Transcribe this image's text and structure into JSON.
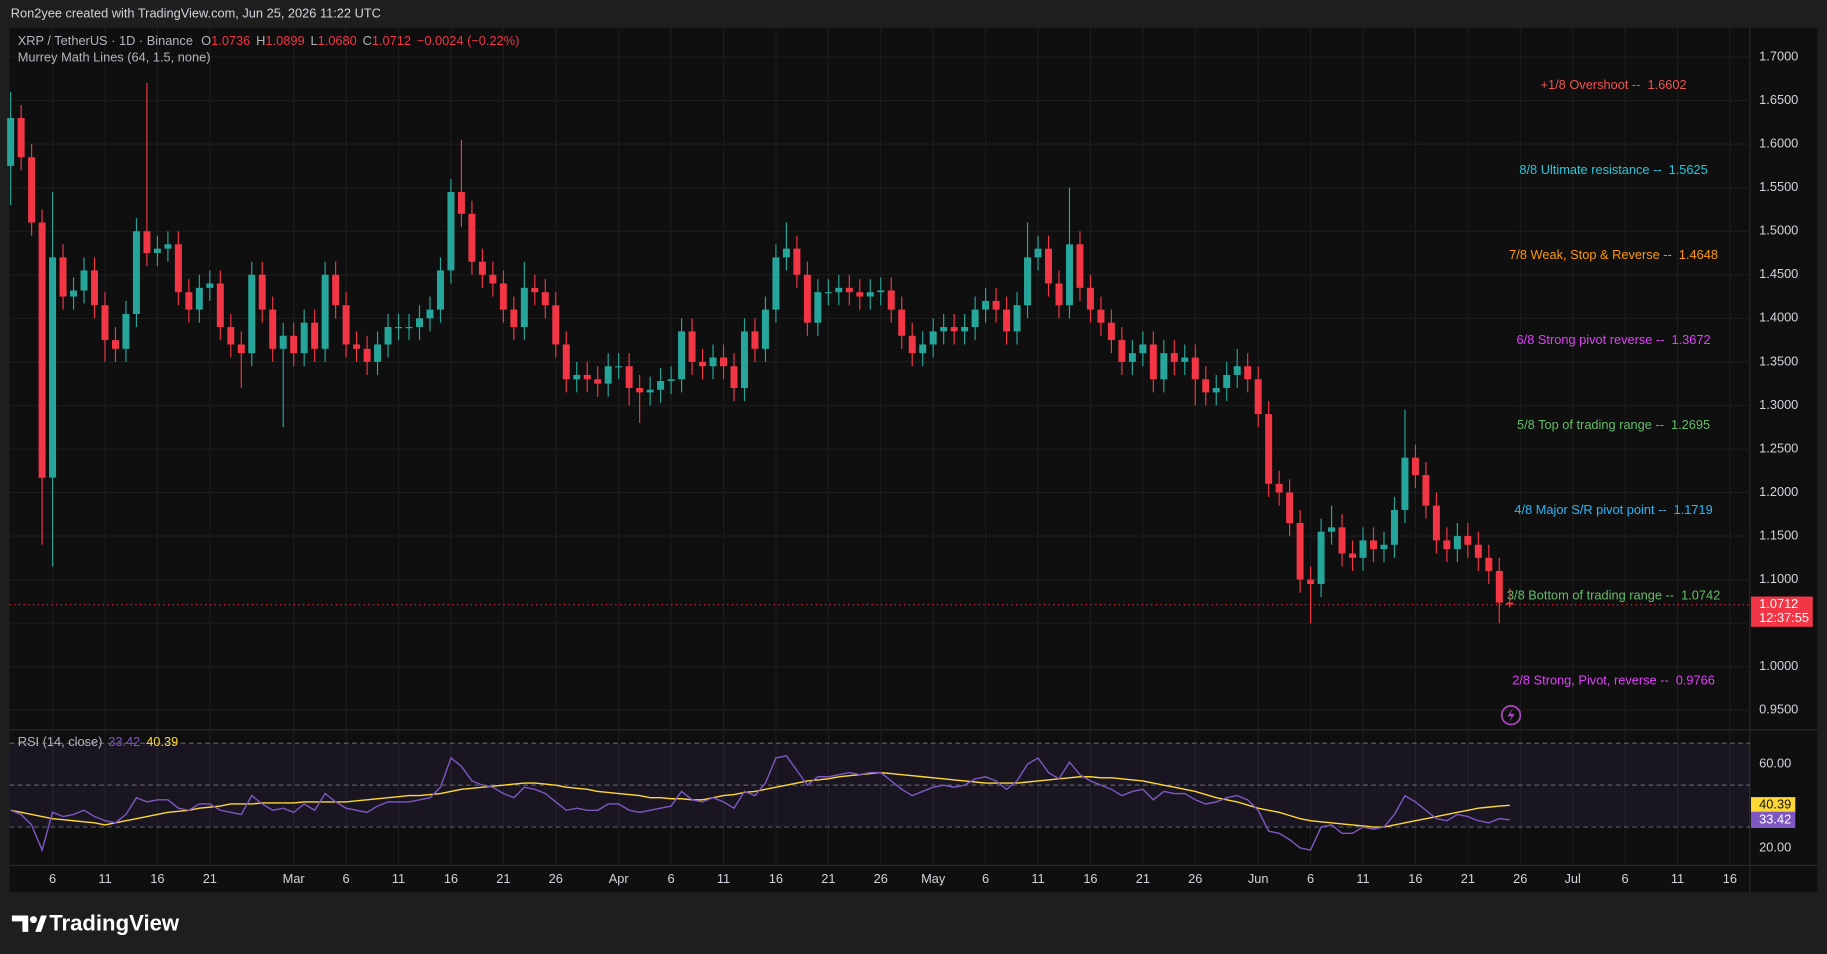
{
  "chart_data": {
    "type": "candlestick",
    "header": "Ron2yee created with TradingView.com, Jun 25, 2026 11:22 UTC",
    "legend": {
      "symbol": "XRP / TetherUS · 1D · Binance",
      "o": "O",
      "h": "H",
      "l": "L",
      "c": "C",
      "values": [
        "1.0736",
        "1.0899",
        "1.0680",
        "1.0712"
      ],
      "change": "−0.0024 (−0.22%)"
    },
    "countdown": "12:37:55",
    "up_color": "#26a69a",
    "down_color": "#f23645",
    "candles": {
      "open": [
        1.575,
        1.63,
        1.585,
        1.51,
        1.217,
        1.47,
        1.425,
        1.432,
        1.455,
        1.415,
        1.375,
        1.365,
        1.405,
        1.5,
        1.475,
        1.48,
        1.485,
        1.43,
        1.41,
        1.435,
        1.44,
        1.39,
        1.37,
        1.36,
        1.45,
        1.41,
        1.365,
        1.38,
        1.36,
        1.395,
        1.365,
        1.45,
        1.415,
        1.37,
        1.365,
        1.35,
        1.37,
        1.39,
        1.39,
        1.39,
        1.4,
        1.41,
        1.455,
        1.545,
        1.52,
        1.465,
        1.45,
        1.44,
        1.41,
        1.39,
        1.435,
        1.43,
        1.415,
        1.37,
        1.33,
        1.335,
        1.33,
        1.325,
        1.345,
        1.345,
        1.32,
        1.315,
        1.318,
        1.328,
        1.33,
        1.385,
        1.35,
        1.345,
        1.355,
        1.345,
        1.32,
        1.385,
        1.365,
        1.41,
        1.47,
        1.48,
        1.45,
        1.395,
        1.43,
        1.43,
        1.435,
        1.43,
        1.425,
        1.43,
        1.432,
        1.41,
        1.38,
        1.36,
        1.37,
        1.385,
        1.39,
        1.385,
        1.39,
        1.41,
        1.42,
        1.41,
        1.385,
        1.415,
        1.47,
        1.48,
        1.44,
        1.415,
        1.485,
        1.435,
        1.41,
        1.395,
        1.375,
        1.35,
        1.36,
        1.37,
        1.33,
        1.36,
        1.35,
        1.355,
        1.33,
        1.315,
        1.32,
        1.335,
        1.345,
        1.33,
        1.29,
        1.21,
        1.2,
        1.165,
        1.1,
        1.095,
        1.155,
        1.16,
        1.13,
        1.125,
        1.145,
        1.135,
        1.14,
        1.18,
        1.24,
        1.22,
        1.185,
        1.145,
        1.135,
        1.15,
        1.14,
        1.125,
        1.11,
        1.0736
      ],
      "high": [
        1.66,
        1.645,
        1.6,
        1.525,
        1.545,
        1.485,
        1.447,
        1.47,
        1.47,
        1.43,
        1.39,
        1.42,
        1.515,
        1.67,
        1.495,
        1.5,
        1.5,
        1.445,
        1.45,
        1.455,
        1.455,
        1.405,
        1.385,
        1.465,
        1.465,
        1.425,
        1.395,
        1.395,
        1.41,
        1.41,
        1.465,
        1.465,
        1.43,
        1.385,
        1.38,
        1.385,
        1.405,
        1.405,
        1.405,
        1.415,
        1.425,
        1.47,
        1.56,
        1.605,
        1.535,
        1.48,
        1.465,
        1.455,
        1.425,
        1.465,
        1.45,
        1.445,
        1.43,
        1.385,
        1.35,
        1.35,
        1.345,
        1.36,
        1.36,
        1.36,
        1.335,
        1.333,
        1.343,
        1.345,
        1.4,
        1.4,
        1.365,
        1.37,
        1.37,
        1.36,
        1.4,
        1.4,
        1.425,
        1.485,
        1.51,
        1.495,
        1.465,
        1.445,
        1.445,
        1.45,
        1.45,
        1.445,
        1.445,
        1.447,
        1.447,
        1.425,
        1.395,
        1.385,
        1.4,
        1.405,
        1.405,
        1.405,
        1.425,
        1.435,
        1.435,
        1.425,
        1.43,
        1.51,
        1.495,
        1.495,
        1.455,
        1.55,
        1.5,
        1.45,
        1.425,
        1.41,
        1.39,
        1.375,
        1.385,
        1.385,
        1.375,
        1.375,
        1.37,
        1.37,
        1.345,
        1.335,
        1.35,
        1.365,
        1.36,
        1.345,
        1.305,
        1.225,
        1.215,
        1.18,
        1.115,
        1.17,
        1.185,
        1.175,
        1.145,
        1.16,
        1.16,
        1.155,
        1.195,
        1.295,
        1.255,
        1.235,
        1.2,
        1.16,
        1.165,
        1.165,
        1.155,
        1.14,
        1.125,
        1.0899
      ],
      "low": [
        1.53,
        1.57,
        1.495,
        1.14,
        1.115,
        1.41,
        1.41,
        1.417,
        1.4,
        1.35,
        1.35,
        1.35,
        1.39,
        1.46,
        1.46,
        1.465,
        1.415,
        1.395,
        1.395,
        1.42,
        1.375,
        1.355,
        1.32,
        1.345,
        1.395,
        1.35,
        1.275,
        1.345,
        1.345,
        1.35,
        1.35,
        1.4,
        1.355,
        1.35,
        1.335,
        1.335,
        1.355,
        1.375,
        1.375,
        1.375,
        1.385,
        1.395,
        1.44,
        1.505,
        1.45,
        1.435,
        1.425,
        1.395,
        1.375,
        1.375,
        1.415,
        1.4,
        1.355,
        1.315,
        1.315,
        1.315,
        1.31,
        1.31,
        1.33,
        1.3,
        1.28,
        1.3,
        1.303,
        1.313,
        1.315,
        1.335,
        1.33,
        1.33,
        1.33,
        1.305,
        1.305,
        1.35,
        1.35,
        1.395,
        1.455,
        1.435,
        1.38,
        1.38,
        1.415,
        1.415,
        1.415,
        1.41,
        1.41,
        1.415,
        1.395,
        1.365,
        1.345,
        1.345,
        1.355,
        1.37,
        1.37,
        1.37,
        1.375,
        1.395,
        1.395,
        1.37,
        1.37,
        1.4,
        1.455,
        1.425,
        1.4,
        1.4,
        1.42,
        1.395,
        1.38,
        1.36,
        1.335,
        1.335,
        1.345,
        1.315,
        1.315,
        1.335,
        1.335,
        1.3,
        1.3,
        1.3,
        1.305,
        1.32,
        1.315,
        1.275,
        1.195,
        1.185,
        1.15,
        1.085,
        1.05,
        1.08,
        1.14,
        1.115,
        1.11,
        1.11,
        1.12,
        1.12,
        1.125,
        1.165,
        1.205,
        1.17,
        1.13,
        1.12,
        1.12,
        1.125,
        1.11,
        1.095,
        1.05,
        1.068
      ],
      "close": [
        1.63,
        1.585,
        1.51,
        1.217,
        1.47,
        1.425,
        1.432,
        1.455,
        1.415,
        1.375,
        1.365,
        1.405,
        1.5,
        1.475,
        1.48,
        1.485,
        1.43,
        1.41,
        1.435,
        1.44,
        1.39,
        1.37,
        1.36,
        1.45,
        1.41,
        1.365,
        1.38,
        1.36,
        1.395,
        1.365,
        1.45,
        1.415,
        1.37,
        1.365,
        1.35,
        1.37,
        1.39,
        1.39,
        1.39,
        1.4,
        1.41,
        1.455,
        1.545,
        1.52,
        1.465,
        1.45,
        1.44,
        1.41,
        1.39,
        1.435,
        1.43,
        1.415,
        1.37,
        1.33,
        1.335,
        1.33,
        1.325,
        1.345,
        1.345,
        1.32,
        1.315,
        1.318,
        1.328,
        1.33,
        1.385,
        1.35,
        1.345,
        1.355,
        1.345,
        1.32,
        1.385,
        1.365,
        1.41,
        1.47,
        1.48,
        1.45,
        1.395,
        1.43,
        1.43,
        1.435,
        1.43,
        1.425,
        1.43,
        1.432,
        1.41,
        1.38,
        1.36,
        1.37,
        1.385,
        1.39,
        1.385,
        1.39,
        1.41,
        1.42,
        1.41,
        1.385,
        1.415,
        1.47,
        1.48,
        1.44,
        1.415,
        1.485,
        1.435,
        1.41,
        1.395,
        1.375,
        1.35,
        1.36,
        1.37,
        1.33,
        1.36,
        1.35,
        1.355,
        1.33,
        1.315,
        1.32,
        1.335,
        1.345,
        1.33,
        1.29,
        1.21,
        1.2,
        1.165,
        1.1,
        1.095,
        1.155,
        1.16,
        1.13,
        1.125,
        1.145,
        1.135,
        1.14,
        1.18,
        1.24,
        1.22,
        1.185,
        1.145,
        1.135,
        1.15,
        1.14,
        1.125,
        1.11,
        1.0736,
        1.0712
      ]
    },
    "xlim": [
      -0.1,
      165.9
    ],
    "xticks": [
      {
        "value": 4,
        "label": "6"
      },
      {
        "value": 9,
        "label": "11"
      },
      {
        "value": 14,
        "label": "16"
      },
      {
        "value": 19,
        "label": "21"
      },
      {
        "value": 27,
        "label": "Mar"
      },
      {
        "value": 32,
        "label": "6"
      },
      {
        "value": 37,
        "label": "11"
      },
      {
        "value": 42,
        "label": "16"
      },
      {
        "value": 47,
        "label": "21"
      },
      {
        "value": 52,
        "label": "26"
      },
      {
        "value": 58,
        "label": "Apr"
      },
      {
        "value": 63,
        "label": "6"
      },
      {
        "value": 68,
        "label": "11"
      },
      {
        "value": 73,
        "label": "16"
      },
      {
        "value": 78,
        "label": "21"
      },
      {
        "value": 83,
        "label": "26"
      },
      {
        "value": 88,
        "label": "May"
      },
      {
        "value": 93,
        "label": "6"
      },
      {
        "value": 98,
        "label": "11"
      },
      {
        "value": 103,
        "label": "16"
      },
      {
        "value": 108,
        "label": "21"
      },
      {
        "value": 113,
        "label": "26"
      },
      {
        "value": 119,
        "label": "Jun"
      },
      {
        "value": 124,
        "label": "6"
      },
      {
        "value": 129,
        "label": "11"
      },
      {
        "value": 134,
        "label": "16"
      },
      {
        "value": 139,
        "label": "21"
      },
      {
        "value": 144,
        "label": "26"
      },
      {
        "value": 149,
        "label": "Jul"
      },
      {
        "value": 154,
        "label": "6"
      },
      {
        "value": 159,
        "label": "11"
      },
      {
        "value": 164,
        "label": "16"
      }
    ],
    "ylim": [
      0.9296,
      1.7334
    ],
    "yticks": [
      {
        "value": 0.95,
        "label": "0.9500"
      },
      {
        "value": 1.0,
        "label": "1.0000"
      },
      {
        "value": 1.05,
        "label": "1.0500"
      },
      {
        "value": 1.1,
        "label": "1.1000"
      },
      {
        "value": 1.15,
        "label": "1.1500"
      },
      {
        "value": 1.2,
        "label": "1.2000"
      },
      {
        "value": 1.25,
        "label": "1.2500"
      },
      {
        "value": 1.3,
        "label": "1.3000"
      },
      {
        "value": 1.35,
        "label": "1.3500"
      },
      {
        "value": 1.4,
        "label": "1.4000"
      },
      {
        "value": 1.45,
        "label": "1.4500"
      },
      {
        "value": 1.5,
        "label": "1.5000"
      },
      {
        "value": 1.55,
        "label": "1.5500"
      },
      {
        "value": 1.6,
        "label": "1.6000"
      },
      {
        "value": 1.65,
        "label": "1.6500"
      },
      {
        "value": 1.7,
        "label": "1.7000"
      }
    ],
    "grid": true,
    "murrey": {
      "title": "Murrey Math Lines (64, 1.5, none)",
      "levels": [
        {
          "name": "+1/8 Overshoot --",
          "value": 1.6602,
          "color": "#f05350"
        },
        {
          "name": "8/8 Ultimate resistance --",
          "value": 1.5625,
          "color": "#26c6da"
        },
        {
          "name": "7/8 Weak, Stop & Reverse --",
          "value": 1.4648,
          "color": "#ff9800"
        },
        {
          "name": "6/8 Strong pivot reverse --",
          "value": 1.3672,
          "color": "#e040fb"
        },
        {
          "name": "5/8 Top of trading range --",
          "value": 1.2695,
          "color": "#66bb6a"
        },
        {
          "name": "4/8 Major S/R pivot point --",
          "value": 1.1719,
          "color": "#29b6f6"
        },
        {
          "name": "3/8 Bottom of trading range --",
          "value": 1.0742,
          "color": "#66bb6a"
        },
        {
          "name": "2/8 Strong, Pivot, reverse --",
          "value": 0.9766,
          "color": "#e040fb"
        }
      ]
    },
    "rsi": {
      "title": "RSI (14, close)",
      "color": "#7e57c2",
      "ylim": [
        12.2,
        75.6
      ],
      "yticks": [
        {
          "value": 60,
          "label": "60.00"
        },
        {
          "value": 20,
          "label": "20.00"
        }
      ],
      "levels": [
        70,
        50,
        30
      ],
      "values": [
        38,
        36,
        31,
        19,
        37,
        35,
        36,
        38,
        35,
        33,
        32,
        36,
        44,
        42,
        43,
        43,
        39,
        38,
        41,
        41,
        38,
        37,
        36,
        45,
        41,
        38,
        39,
        37,
        41,
        38,
        46,
        42,
        39,
        38,
        37,
        40,
        42,
        42,
        42,
        43,
        44,
        49,
        63,
        59,
        52,
        50,
        49,
        46,
        44,
        49,
        48,
        46,
        42,
        38,
        39,
        38,
        38,
        41,
        41,
        38,
        37,
        38,
        39,
        40,
        47,
        43,
        42,
        44,
        42,
        39,
        47,
        45,
        51,
        63,
        64,
        57,
        50,
        54,
        54,
        55,
        56,
        55,
        56,
        56,
        52,
        48,
        45,
        47,
        49,
        50,
        49,
        50,
        53,
        54,
        52,
        48,
        52,
        60,
        63,
        56,
        53,
        61,
        55,
        52,
        50,
        48,
        45,
        47,
        48,
        43,
        47,
        46,
        46,
        43,
        41,
        42,
        44,
        45,
        43,
        38,
        28,
        27,
        24,
        20,
        19,
        30,
        31,
        27,
        27,
        30,
        29,
        30,
        36,
        45,
        42,
        38,
        34,
        33,
        36,
        35,
        33,
        32,
        34,
        33.42
      ],
      "ma": {
        "color": "#fdd835",
        "values": [
          38,
          37,
          36,
          35,
          34,
          33.5,
          33,
          32.5,
          32,
          31,
          32,
          33,
          34,
          35,
          36,
          37,
          37.5,
          38,
          39,
          39.5,
          40,
          41,
          41,
          41,
          41.5,
          41.5,
          41.5,
          41.5,
          42,
          42,
          42,
          42,
          42,
          42.5,
          43,
          43.5,
          44,
          44.5,
          45,
          45,
          45.5,
          46,
          47,
          48,
          48.5,
          49,
          49.5,
          50,
          50.5,
          51,
          51,
          50.5,
          50,
          49,
          48.5,
          48,
          47,
          46.5,
          46,
          45.5,
          45,
          44,
          44,
          43.5,
          43.5,
          43,
          43,
          44,
          45,
          45.5,
          46.5,
          47,
          48,
          49,
          50,
          51,
          52,
          52.5,
          53,
          54,
          54.5,
          55,
          55.5,
          56,
          55.5,
          55,
          54.5,
          54,
          53.5,
          53,
          52.5,
          52,
          51.5,
          51,
          51,
          51,
          51,
          51.5,
          52,
          52.5,
          53,
          53.5,
          54,
          54,
          53.5,
          53.5,
          53,
          52.5,
          52,
          51,
          50,
          49,
          48,
          47,
          45.5,
          44,
          43,
          42,
          40.5,
          39,
          38,
          37,
          35.5,
          34,
          33,
          32.5,
          32,
          31.5,
          31,
          30.5,
          30,
          30,
          31,
          32,
          33,
          34,
          35,
          36,
          37,
          38,
          39,
          39.5,
          40,
          40.39
        ]
      }
    },
    "logo": "TradingView"
  }
}
